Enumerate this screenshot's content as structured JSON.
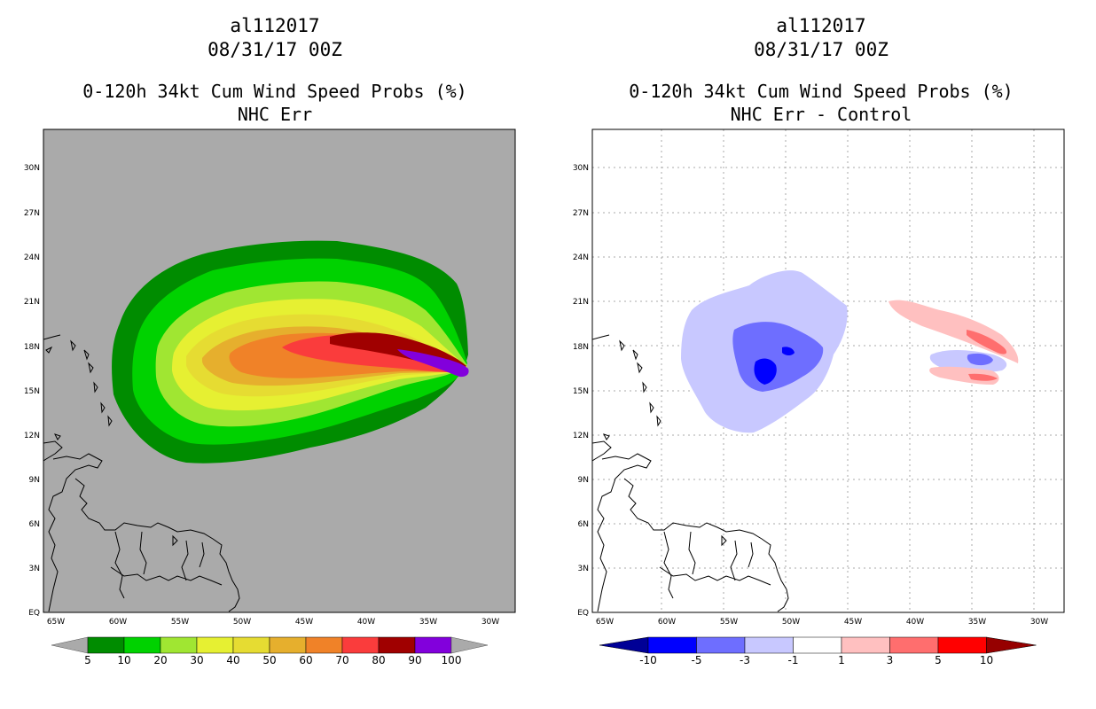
{
  "left_panel": {
    "storm_id": "al112017",
    "datetime": "08/31/17 00Z",
    "product": "0-120h 34kt Cum Wind Speed Probs (%)",
    "subtitle": "NHC Err",
    "colorbar_labels": [
      "5",
      "10",
      "20",
      "30",
      "40",
      "50",
      "60",
      "70",
      "80",
      "90",
      "100"
    ],
    "colors": [
      "#008c00",
      "#00d200",
      "#a0e632",
      "#e6f032",
      "#e6dc32",
      "#e6af2d",
      "#f08228",
      "#fa3c3c",
      "#a00000",
      "#8200dc"
    ]
  },
  "right_panel": {
    "storm_id": "al112017",
    "datetime": "08/31/17 00Z",
    "product": "0-120h 34kt Cum Wind Speed Probs (%)",
    "subtitle": "NHC Err - Control",
    "colorbar_labels": [
      "-10",
      "-5",
      "-3",
      "-1",
      "1",
      "3",
      "5",
      "10"
    ],
    "colors": [
      "#000096",
      "#0000ff",
      "#6e6eff",
      "#c8c8ff",
      "#ffffff",
      "#ffc0c0",
      "#ff6e6e",
      "#ff0000",
      "#960000"
    ]
  },
  "axes": {
    "lon_labels": [
      "65W",
      "60W",
      "55W",
      "50W",
      "45W",
      "40W",
      "35W",
      "30W"
    ],
    "lat_labels": [
      "EQ",
      "3N",
      "6N",
      "9N",
      "12N",
      "15N",
      "18N",
      "21N",
      "24N",
      "27N",
      "30N"
    ]
  },
  "map_colors": {
    "background_left": "#aaaaaa",
    "background_right": "#ffffff",
    "coast": "#000000"
  }
}
